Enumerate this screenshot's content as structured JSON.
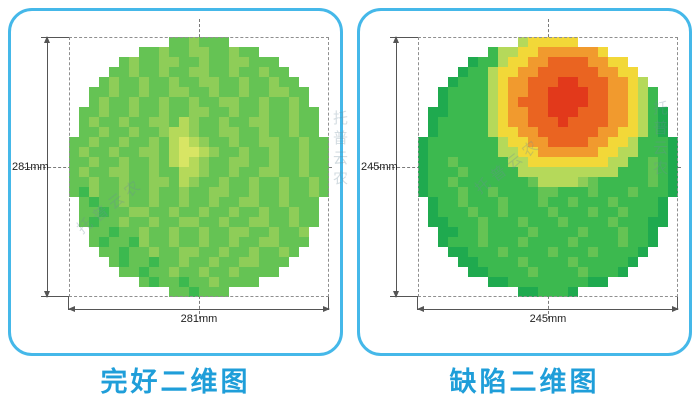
{
  "watermark": {
    "text": "托普云农"
  },
  "colors": {
    "panel_border": "#45b8e9",
    "caption": "#1f9ed9",
    "dimension_line": "#555555",
    "dashed_guide": "#8f8f8f"
  },
  "panels": [
    {
      "caption": "完好二维图",
      "dim_vertical": "281mm",
      "dim_horizontal": "281mm"
    },
    {
      "caption": "缺陷二维图",
      "dim_vertical": "245mm",
      "dim_horizontal": "245mm"
    }
  ],
  "chart_data": [
    {
      "type": "heatmap",
      "title": "完好二维图",
      "description": "2D cross-section map of an intact (defect-free) sample; uniform green disc with slight yellow-green mottling at center",
      "width_mm": 281,
      "height_mm": 281,
      "width_label": "281mm",
      "height_label": "281mm",
      "palette": {
        ".": "transparent",
        "A": "#1faa4f",
        "B": "#3cb94f",
        "C": "#65c354",
        "D": "#8ecd58",
        "E": "#b5d95a",
        "F": "#d8e564",
        "Y": "#f2d838",
        "O": "#f19a2e",
        "R": "#ea6421",
        "S": "#e2391b"
      },
      "grid": [
        "..........CCDCCC..........",
        ".......CCDCCDDCCDCC.......",
        ".....CDCCDDCCDCCDDCCC.....",
        "....CCDCCDCCDDCCDCCDCC....",
        "...CDCCDCCDCCDDCCDCCDCC...",
        "..CCDCCDCCDDCCDCCDCCDDCC..",
        "..CDCCDCCDCCDCCDDCCDCCDC..",
        ".CCDCCDCCDCCDDCCDCCDCCDCC.",
        ".CDCCDCCDDCEDCCDCCDDCCDCC.",
        ".CCDCCDCCDEEDCCDDCCDCCDCC.",
        "CCDCCDCCDCEFEDCCDCCDDCCDCC",
        "CDCCDCCDDCEFFEDCCDCCDCCDCC",
        "CCDCCDCCDCEFEDCCDDCCDCCDCC",
        "CDCCDDCCDCCEEDCCDCCDDCCDCC",
        "CCDCCDCCDDCEDCCDCCDCCDCCDC",
        "CBDCCDCCDCCDCCDDCCDCCDCCDC",
        ".CBCCDCCDCCDCCDCCDDCCDCCC.",
        ".CCBCCDDCCDCCDCCDCCDCCDCC.",
        ".CBCCDCCDCCDDCCDCCDDCCDCC.",
        "..CCBCCDCCDCCDCCDDCCDCCD..",
        "..CBCCBDCCDCCDCCDCCDDCCC..",
        "...CCBCCDCCDDCCDCCDCCDC...",
        "....CBCCBCCDCCDCCDDCCC....",
        ".....CCBCCDCCDCCDCCCC.....",
        ".......CBCCBCCDCCCC.......",
        "..........CCBCCC.........."
      ]
    },
    {
      "type": "heatmap",
      "title": "缺陷二维图",
      "description": "2D cross-section map of a defective sample; green disc with a large red-orange defect zone at the top center surrounded by yellow transition ring",
      "width_mm": 245,
      "height_mm": 245,
      "width_label": "245mm",
      "height_label": "245mm",
      "palette": {
        ".": "transparent",
        "A": "#1faa4f",
        "B": "#3cb94f",
        "C": "#65c354",
        "D": "#8ecd58",
        "E": "#b5d95a",
        "F": "#d8e564",
        "Y": "#f2d838",
        "O": "#f19a2e",
        "R": "#ea6421",
        "S": "#e2391b"
      },
      "grid": [
        "..........EYYYYY..........",
        ".......BEEYYOOOOOOY.......",
        ".....ABBEYYOORRRROOYY.....",
        "....ABBEYYOORRRRRROOYY....",
        "...ABBBEYOORRRSSRRROOYE...",
        "..ABBBBEYOORRSSSSRROOYEB..",
        "..ABBBBEYORRRSSSSRROOYEB..",
        ".AABBBBEYOORRSSSRRROOYEBA.",
        ".ABBBBBEYOORRRSRRRROOYEBA.",
        ".ABBBBBEYYOORRRRRROOYYEBA.",
        "ABBBBBBBEYYOORRRROOYYEBBBA",
        "ABBBBBBBEEYYOOOOOOYYEEBBBA",
        "ABBCBBBBBEEYYYYYYYYEEBBCBA",
        "ABBBCBBBBBEEEEEEEEEEBBBCBA",
        "ABBCBBBBBBBCEEEEDCBBBBBCBA",
        "ABBBCBBCBBBBCCBBBCBBBCBBBA",
        ".ABBCBBBCBBBCBBCBBBCBBBBA.",
        ".ABBBCBBCBBBBCBBBCBBCBBBA.",
        ".AABBBCBBBCBBBCBBBBCBBBAA.",
        "..AABBCBBBBCBBBBCBBBCBBA..",
        "..ABBBCBBBCBBBBCBBBBCBBA..",
        "...AABBBCBBBBCBBBCBBBBA...",
        "....AABBBBCBBBBCBBBBBA....",
        ".....AABBBBCBBBBCBBBA.....",
        ".......AABBBBBBBBAA.......",
        "..........AABBBA.........."
      ]
    }
  ]
}
